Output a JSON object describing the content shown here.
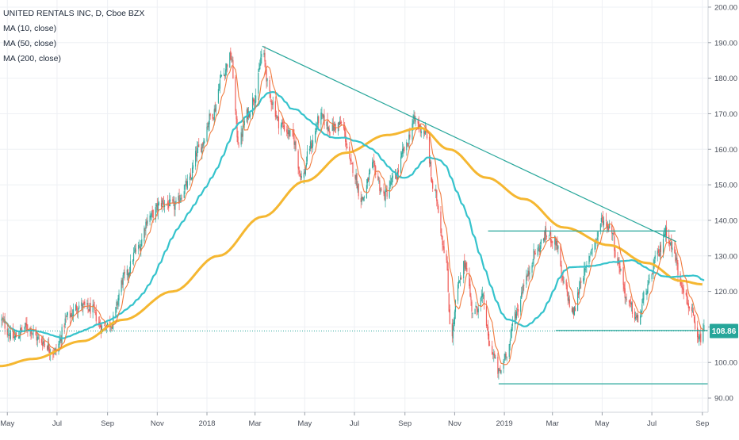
{
  "legend": {
    "title": "UNITED RENTALS INC, D, Cboe BZX",
    "ma10": "MA (10, close)",
    "ma50": "MA (50, close)",
    "ma200": "MA (200, close)"
  },
  "last_price": "108.86",
  "colors": {
    "up": "#26a69a",
    "down": "#ef5350",
    "ma10": "#f07b3f",
    "ma50": "#35c3cc",
    "ma200": "#f5b731",
    "trendline": "#26a69a",
    "price_box": "#26a69a",
    "grid": "#eef0f4"
  },
  "chart_data": {
    "type": "candlestick",
    "y_axis": {
      "ticks": [
        "200.00",
        "190.00",
        "180.00",
        "170.00",
        "160.00",
        "150.00",
        "140.00",
        "130.00",
        "120.00",
        "110.00",
        "100.00",
        "90.00"
      ],
      "tick_values": [
        200,
        190,
        180,
        170,
        160,
        150,
        140,
        130,
        120,
        110,
        100,
        90
      ],
      "range": [
        86,
        202
      ]
    },
    "x_axis": {
      "ticks": [
        "May",
        "Jul",
        "Sep",
        "Nov",
        "2018",
        "Mar",
        "May",
        "Jul",
        "Sep",
        "Nov",
        "2019",
        "Mar",
        "May",
        "Jul",
        "Sep"
      ],
      "tick_dates": [
        "2017-05-01",
        "2017-07-01",
        "2017-09-01",
        "2017-11-01",
        "2018-01-01",
        "2018-03-01",
        "2018-05-01",
        "2018-07-01",
        "2018-09-01",
        "2018-11-01",
        "2019-01-01",
        "2019-03-01",
        "2019-05-01",
        "2019-07-01",
        "2019-09-01"
      ],
      "range": [
        "2017-04-22",
        "2019-09-08"
      ]
    },
    "price_anchors": [
      [
        "2017-04-22",
        112
      ],
      [
        "2017-05-08",
        107
      ],
      [
        "2017-05-25",
        110
      ],
      [
        "2017-06-12",
        106
      ],
      [
        "2017-06-28",
        103
      ],
      [
        "2017-07-15",
        113
      ],
      [
        "2017-07-28",
        116
      ],
      [
        "2017-08-12",
        115
      ],
      [
        "2017-08-25",
        110
      ],
      [
        "2017-09-05",
        111
      ],
      [
        "2017-09-22",
        124
      ],
      [
        "2017-10-08",
        132
      ],
      [
        "2017-10-22",
        141
      ],
      [
        "2017-11-08",
        145
      ],
      [
        "2017-11-22",
        144
      ],
      [
        "2017-12-08",
        150
      ],
      [
        "2017-12-22",
        160
      ],
      [
        "2018-01-08",
        170
      ],
      [
        "2018-01-20",
        181
      ],
      [
        "2018-01-30",
        186
      ],
      [
        "2018-02-09",
        162
      ],
      [
        "2018-02-20",
        170
      ],
      [
        "2018-03-01",
        175
      ],
      [
        "2018-03-10",
        187
      ],
      [
        "2018-03-20",
        174
      ],
      [
        "2018-04-01",
        167
      ],
      [
        "2018-04-15",
        164
      ],
      [
        "2018-04-28",
        152
      ],
      [
        "2018-05-08",
        161
      ],
      [
        "2018-05-20",
        169
      ],
      [
        "2018-06-01",
        166
      ],
      [
        "2018-06-15",
        167
      ],
      [
        "2018-06-28",
        155
      ],
      [
        "2018-07-10",
        146
      ],
      [
        "2018-07-24",
        155
      ],
      [
        "2018-08-06",
        147
      ],
      [
        "2018-08-20",
        152
      ],
      [
        "2018-09-01",
        160
      ],
      [
        "2018-09-12",
        168
      ],
      [
        "2018-09-25",
        165
      ],
      [
        "2018-10-08",
        147
      ],
      [
        "2018-10-20",
        132
      ],
      [
        "2018-10-28",
        108
      ],
      [
        "2018-11-06",
        122
      ],
      [
        "2018-11-14",
        128
      ],
      [
        "2018-11-24",
        114
      ],
      [
        "2018-12-05",
        118
      ],
      [
        "2018-12-15",
        104
      ],
      [
        "2018-12-26",
        97
      ],
      [
        "2019-01-04",
        103
      ],
      [
        "2019-01-15",
        114
      ],
      [
        "2019-01-28",
        124
      ],
      [
        "2019-02-08",
        131
      ],
      [
        "2019-02-22",
        136
      ],
      [
        "2019-03-05",
        134
      ],
      [
        "2019-03-15",
        122
      ],
      [
        "2019-03-26",
        114
      ],
      [
        "2019-04-08",
        125
      ],
      [
        "2019-04-22",
        134
      ],
      [
        "2019-05-01",
        140
      ],
      [
        "2019-05-12",
        138
      ],
      [
        "2019-05-20",
        128
      ],
      [
        "2019-06-03",
        116
      ],
      [
        "2019-06-14",
        112
      ],
      [
        "2019-06-25",
        121
      ],
      [
        "2019-07-08",
        130
      ],
      [
        "2019-07-18",
        137
      ],
      [
        "2019-07-28",
        131
      ],
      [
        "2019-08-05",
        123
      ],
      [
        "2019-08-16",
        116
      ],
      [
        "2019-08-27",
        106
      ],
      [
        "2019-09-03",
        109
      ]
    ],
    "ma200_anchors": [
      [
        "2017-04-22",
        99
      ],
      [
        "2017-06-01",
        101
      ],
      [
        "2017-08-01",
        106
      ],
      [
        "2017-09-20",
        112
      ],
      [
        "2017-11-20",
        120
      ],
      [
        "2018-01-15",
        130
      ],
      [
        "2018-03-10",
        141
      ],
      [
        "2018-05-01",
        151
      ],
      [
        "2018-06-20",
        159
      ],
      [
        "2018-08-10",
        164
      ],
      [
        "2018-09-20",
        166
      ],
      [
        "2018-10-25",
        160
      ],
      [
        "2018-12-10",
        152
      ],
      [
        "2019-01-25",
        146
      ],
      [
        "2019-03-15",
        138
      ],
      [
        "2019-05-10",
        133
      ],
      [
        "2019-06-25",
        128
      ],
      [
        "2019-08-05",
        123
      ],
      [
        "2019-09-01",
        122
      ]
    ],
    "trendlines": [
      {
        "name": "descending-resistance",
        "from": [
          "2018-03-10",
          189
        ],
        "to": [
          "2019-07-31",
          134
        ]
      },
      {
        "name": "range-top",
        "from": [
          "2018-12-12",
          137
        ],
        "to": [
          "2019-07-30",
          137
        ]
      },
      {
        "name": "range-bottom",
        "from": [
          "2019-03-05",
          109
        ],
        "to": [
          "2019-09-08",
          109
        ]
      },
      {
        "name": "low-support",
        "from": [
          "2018-12-25",
          94
        ],
        "to": [
          "2019-09-08",
          94
        ]
      }
    ],
    "last_price": 108.86
  }
}
